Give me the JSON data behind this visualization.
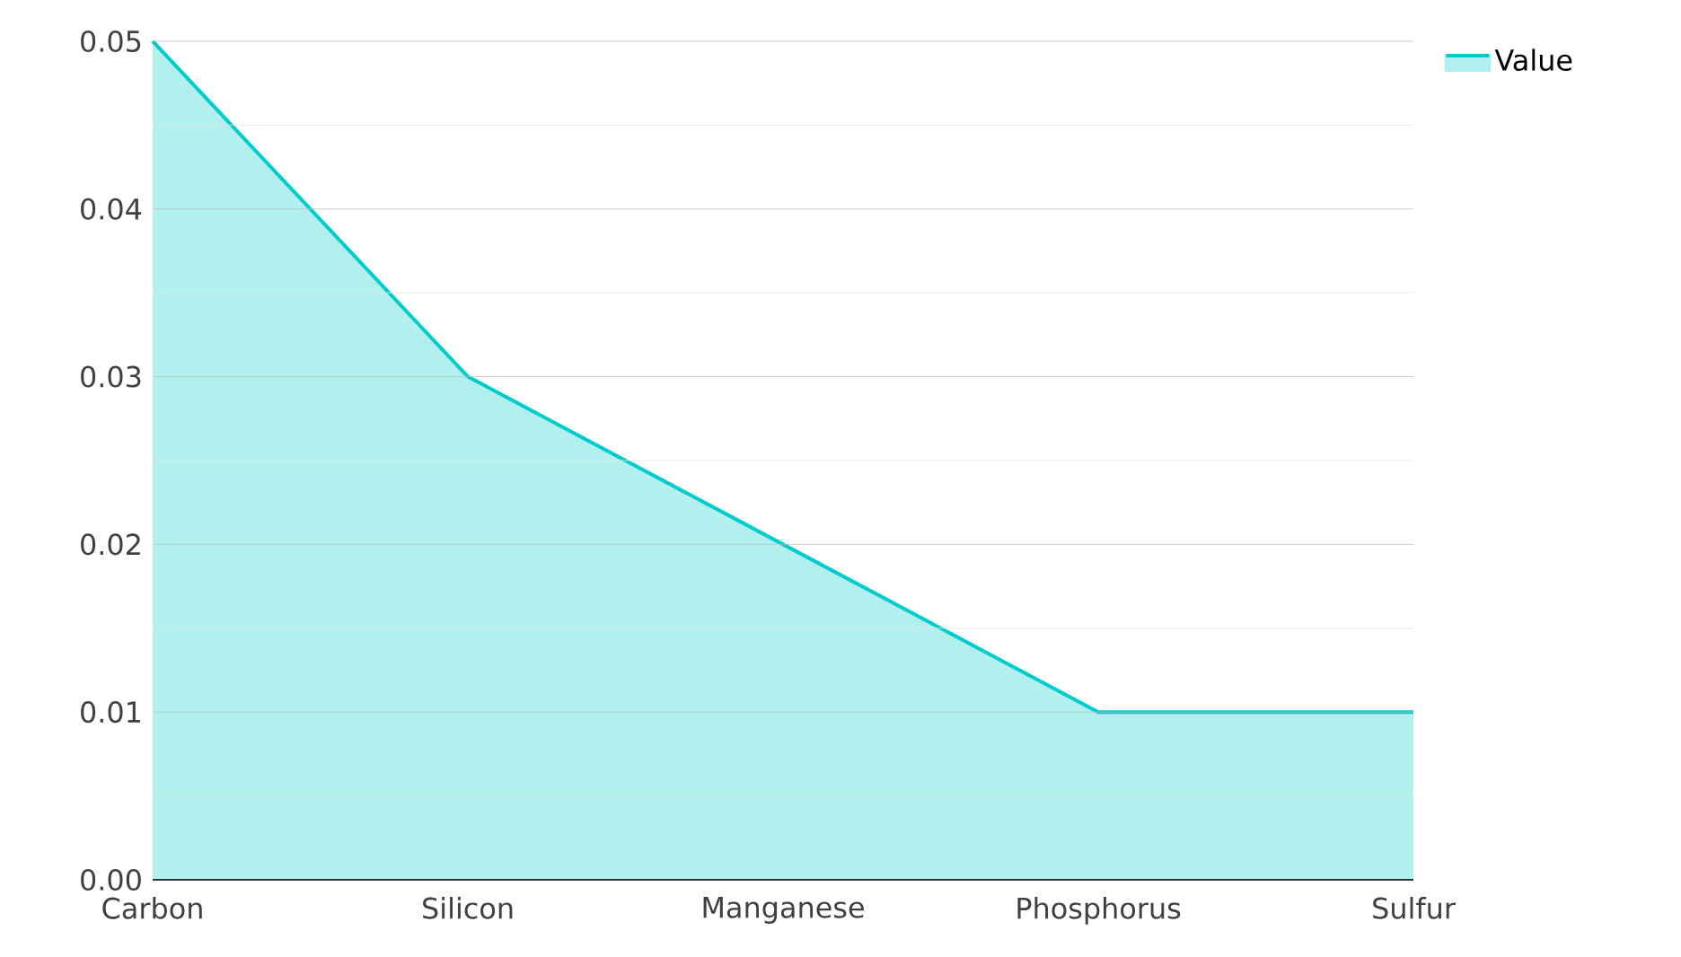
{
  "chart_data": {
    "type": "area",
    "categories": [
      "Carbon",
      "Silicon",
      "Manganese",
      "Phosphorus",
      "Sulfur"
    ],
    "series": [
      {
        "name": "Value",
        "color": "#00cccc",
        "values": [
          0.05,
          0.03,
          0.02,
          0.01,
          0.01
        ]
      }
    ],
    "ylim": [
      0,
      0.05
    ],
    "yticks": [
      {
        "value": 0,
        "label": "0.00"
      },
      0.01,
      0.02,
      0.03,
      0.04,
      0.05
    ],
    "grid": "y",
    "legend": "top right"
  }
}
